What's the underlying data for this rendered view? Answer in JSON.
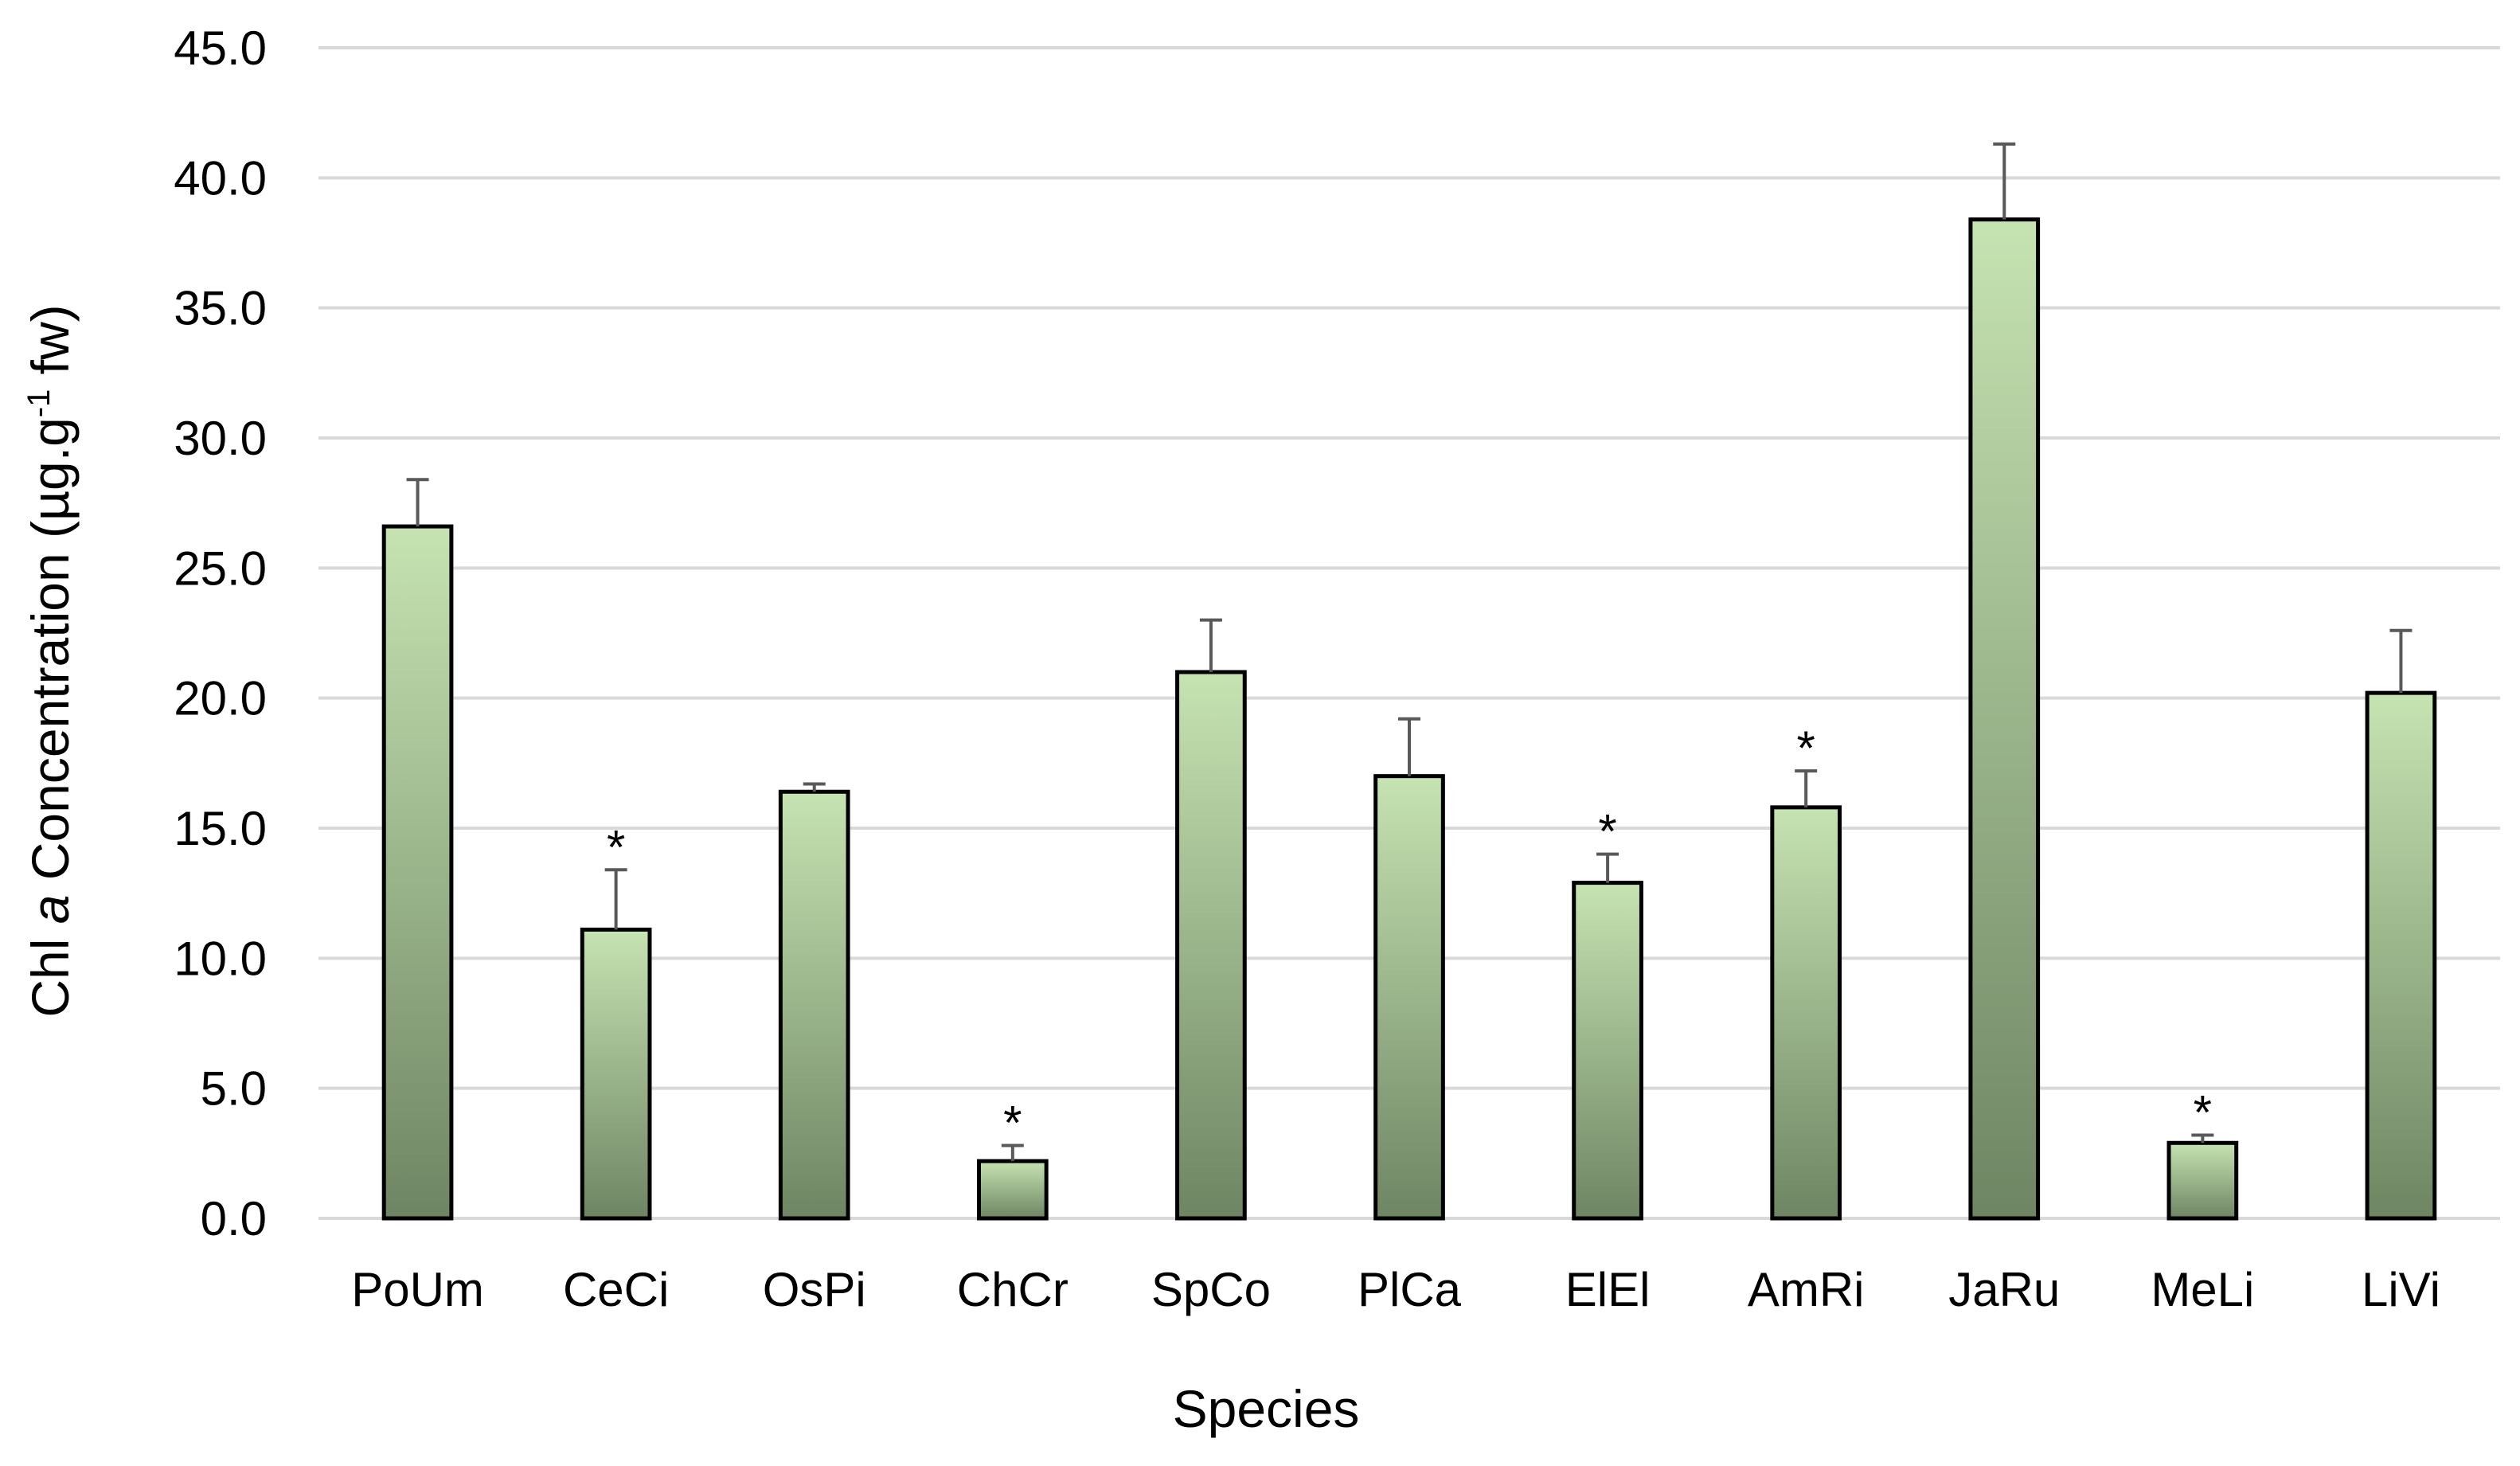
{
  "chart_data": {
    "type": "bar",
    "title": "",
    "xlabel": "Species",
    "ylabel": {
      "prefix": "Chl ",
      "italic": "a",
      "middle": " Concentration (µg.g",
      "superscript": "-1",
      "suffix": " fw)"
    },
    "ylim": [
      0,
      45
    ],
    "ytick_step": 5,
    "ytick_labels": [
      "0.0",
      "5.0",
      "10.0",
      "15.0",
      "20.0",
      "25.0",
      "30.0",
      "35.0",
      "40.0",
      "45.0"
    ],
    "grid": true,
    "categories": [
      "PoUm",
      "CeCi",
      "OsPi",
      "ChCr",
      "SpCo",
      "PlCa",
      "ElEl",
      "AmRi",
      "JaRu",
      "MeLi",
      "LiVi"
    ],
    "values": [
      26.6,
      11.1,
      16.4,
      2.2,
      21.0,
      17.0,
      12.9,
      15.8,
      38.4,
      2.9,
      20.2
    ],
    "errors": [
      1.8,
      2.3,
      0.3,
      0.6,
      2.0,
      2.2,
      1.1,
      1.4,
      2.9,
      0.3,
      2.4
    ],
    "significant": [
      false,
      true,
      false,
      true,
      false,
      false,
      true,
      true,
      false,
      true,
      false
    ],
    "significance_marker": "*",
    "colors": {
      "bar_top": "#c6e3b2",
      "bar_bottom": "#6e8563",
      "bar_edge": "#000000",
      "error_bar": "#595959",
      "grid": "#d9d9d9"
    }
  }
}
